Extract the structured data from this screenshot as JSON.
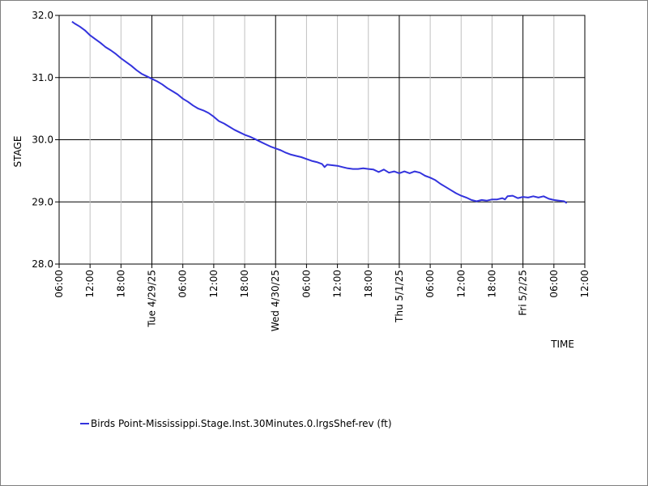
{
  "chart_data": {
    "type": "line",
    "xlabel": "TIME",
    "ylabel": "STAGE",
    "xlim": [
      "2025-04-28 06:00",
      "2025-05-02 12:00"
    ],
    "ylim": [
      28.0,
      32.0
    ],
    "grid": true,
    "legend_placement": "bottom-left",
    "y_ticks": [
      "28.0",
      "29.0",
      "30.0",
      "31.0",
      "32.0"
    ],
    "x_ticks": [
      {
        "t": "2025-04-28 06:00",
        "label": "06:00",
        "major": false
      },
      {
        "t": "2025-04-28 12:00",
        "label": "12:00",
        "major": false
      },
      {
        "t": "2025-04-28 18:00",
        "label": "18:00",
        "major": false
      },
      {
        "t": "2025-04-29 00:00",
        "label": "Tue 4/29/25",
        "major": true
      },
      {
        "t": "2025-04-29 06:00",
        "label": "06:00",
        "major": false
      },
      {
        "t": "2025-04-29 12:00",
        "label": "12:00",
        "major": false
      },
      {
        "t": "2025-04-29 18:00",
        "label": "18:00",
        "major": false
      },
      {
        "t": "2025-04-30 00:00",
        "label": "Wed 4/30/25",
        "major": true
      },
      {
        "t": "2025-04-30 06:00",
        "label": "06:00",
        "major": false
      },
      {
        "t": "2025-04-30 12:00",
        "label": "12:00",
        "major": false
      },
      {
        "t": "2025-04-30 18:00",
        "label": "18:00",
        "major": false
      },
      {
        "t": "2025-05-01 00:00",
        "label": "Thu 5/1/25",
        "major": true
      },
      {
        "t": "2025-05-01 06:00",
        "label": "06:00",
        "major": false
      },
      {
        "t": "2025-05-01 12:00",
        "label": "12:00",
        "major": false
      },
      {
        "t": "2025-05-01 18:00",
        "label": "18:00",
        "major": false
      },
      {
        "t": "2025-05-02 00:00",
        "label": "Fri 5/2/25",
        "major": true
      },
      {
        "t": "2025-05-02 06:00",
        "label": "06:00",
        "major": false
      },
      {
        "t": "2025-05-02 12:00",
        "label": "12:00",
        "major": false
      }
    ],
    "series": [
      {
        "name": "Birds Point-Mississippi.Stage.Inst.30Minutes.0.lrgsShef-rev (ft)",
        "color": "#3333dd",
        "points": [
          [
            "2025-04-28 08:30",
            31.9
          ],
          [
            "2025-04-28 09:00",
            31.87
          ],
          [
            "2025-04-28 10:00",
            31.82
          ],
          [
            "2025-04-28 11:00",
            31.76
          ],
          [
            "2025-04-28 12:00",
            31.68
          ],
          [
            "2025-04-28 13:00",
            31.62
          ],
          [
            "2025-04-28 14:00",
            31.56
          ],
          [
            "2025-04-28 15:00",
            31.49
          ],
          [
            "2025-04-28 16:00",
            31.44
          ],
          [
            "2025-04-28 17:00",
            31.38
          ],
          [
            "2025-04-28 18:00",
            31.31
          ],
          [
            "2025-04-28 19:00",
            31.25
          ],
          [
            "2025-04-28 20:00",
            31.19
          ],
          [
            "2025-04-28 21:00",
            31.12
          ],
          [
            "2025-04-28 22:00",
            31.06
          ],
          [
            "2025-04-28 23:00",
            31.02
          ],
          [
            "2025-04-29 00:00",
            30.98
          ],
          [
            "2025-04-29 01:00",
            30.94
          ],
          [
            "2025-04-29 02:00",
            30.89
          ],
          [
            "2025-04-29 03:00",
            30.83
          ],
          [
            "2025-04-29 04:00",
            30.78
          ],
          [
            "2025-04-29 05:00",
            30.73
          ],
          [
            "2025-04-29 06:00",
            30.66
          ],
          [
            "2025-04-29 07:00",
            30.61
          ],
          [
            "2025-04-29 08:00",
            30.55
          ],
          [
            "2025-04-29 09:00",
            30.5
          ],
          [
            "2025-04-29 10:00",
            30.47
          ],
          [
            "2025-04-29 11:00",
            30.43
          ],
          [
            "2025-04-29 12:00",
            30.37
          ],
          [
            "2025-04-29 13:00",
            30.3
          ],
          [
            "2025-04-29 14:00",
            30.26
          ],
          [
            "2025-04-29 15:00",
            30.21
          ],
          [
            "2025-04-29 16:00",
            30.16
          ],
          [
            "2025-04-29 17:00",
            30.12
          ],
          [
            "2025-04-29 18:00",
            30.08
          ],
          [
            "2025-04-29 19:00",
            30.05
          ],
          [
            "2025-04-29 20:00",
            30.01
          ],
          [
            "2025-04-29 21:00",
            29.97
          ],
          [
            "2025-04-29 22:00",
            29.93
          ],
          [
            "2025-04-29 23:00",
            29.89
          ],
          [
            "2025-04-30 00:00",
            29.86
          ],
          [
            "2025-04-30 01:00",
            29.83
          ],
          [
            "2025-04-30 02:00",
            29.79
          ],
          [
            "2025-04-30 03:00",
            29.76
          ],
          [
            "2025-04-30 04:00",
            29.74
          ],
          [
            "2025-04-30 05:00",
            29.72
          ],
          [
            "2025-04-30 06:00",
            29.69
          ],
          [
            "2025-04-30 07:00",
            29.66
          ],
          [
            "2025-04-30 08:00",
            29.64
          ],
          [
            "2025-04-30 09:00",
            29.61
          ],
          [
            "2025-04-30 09:30",
            29.56
          ],
          [
            "2025-04-30 10:00",
            29.6
          ],
          [
            "2025-04-30 11:00",
            29.59
          ],
          [
            "2025-04-30 12:00",
            29.58
          ],
          [
            "2025-04-30 13:00",
            29.56
          ],
          [
            "2025-04-30 14:00",
            29.54
          ],
          [
            "2025-04-30 15:00",
            29.53
          ],
          [
            "2025-04-30 16:00",
            29.53
          ],
          [
            "2025-04-30 17:00",
            29.54
          ],
          [
            "2025-04-30 18:00",
            29.53
          ],
          [
            "2025-04-30 19:00",
            29.52
          ],
          [
            "2025-04-30 20:00",
            29.48
          ],
          [
            "2025-04-30 21:00",
            29.52
          ],
          [
            "2025-04-30 22:00",
            29.47
          ],
          [
            "2025-04-30 23:00",
            29.49
          ],
          [
            "2025-05-01 00:00",
            29.46
          ],
          [
            "2025-05-01 01:00",
            29.49
          ],
          [
            "2025-05-01 02:00",
            29.46
          ],
          [
            "2025-05-01 03:00",
            29.49
          ],
          [
            "2025-05-01 04:00",
            29.47
          ],
          [
            "2025-05-01 05:00",
            29.42
          ],
          [
            "2025-05-01 06:00",
            29.39
          ],
          [
            "2025-05-01 07:00",
            29.35
          ],
          [
            "2025-05-01 08:00",
            29.29
          ],
          [
            "2025-05-01 09:00",
            29.24
          ],
          [
            "2025-05-01 10:00",
            29.19
          ],
          [
            "2025-05-01 11:00",
            29.14
          ],
          [
            "2025-05-01 12:00",
            29.1
          ],
          [
            "2025-05-01 13:00",
            29.07
          ],
          [
            "2025-05-01 14:00",
            29.03
          ],
          [
            "2025-05-01 15:00",
            29.01
          ],
          [
            "2025-05-01 16:00",
            29.03
          ],
          [
            "2025-05-01 17:00",
            29.02
          ],
          [
            "2025-05-01 18:00",
            29.04
          ],
          [
            "2025-05-01 19:00",
            29.04
          ],
          [
            "2025-05-01 20:00",
            29.06
          ],
          [
            "2025-05-01 20:30",
            29.04
          ],
          [
            "2025-05-01 21:00",
            29.09
          ],
          [
            "2025-05-01 22:00",
            29.1
          ],
          [
            "2025-05-01 23:00",
            29.06
          ],
          [
            "2025-05-02 00:00",
            29.08
          ],
          [
            "2025-05-02 01:00",
            29.07
          ],
          [
            "2025-05-02 02:00",
            29.09
          ],
          [
            "2025-05-02 03:00",
            29.07
          ],
          [
            "2025-05-02 04:00",
            29.09
          ],
          [
            "2025-05-02 05:00",
            29.05
          ],
          [
            "2025-05-02 06:00",
            29.03
          ],
          [
            "2025-05-02 07:00",
            29.02
          ],
          [
            "2025-05-02 08:00",
            29.01
          ],
          [
            "2025-05-02 08:30",
            28.98
          ]
        ]
      }
    ]
  }
}
